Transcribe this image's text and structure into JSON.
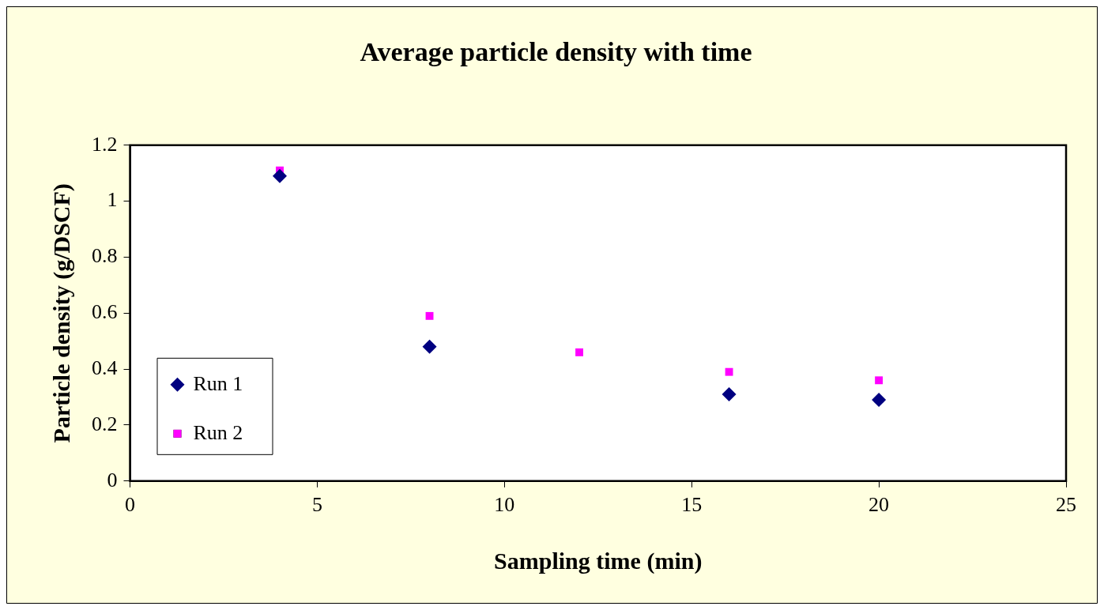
{
  "chart_data": {
    "type": "scatter",
    "title": "Average particle density with time",
    "xlabel": "Sampling time (min)",
    "ylabel": "Particle density (g/DSCF)",
    "xlim": [
      0,
      25
    ],
    "xticks": [
      0,
      5,
      10,
      15,
      20,
      25
    ],
    "ylim": [
      0,
      1.2
    ],
    "yticks": [
      0,
      0.2,
      0.4,
      0.6,
      0.8,
      1,
      1.2
    ],
    "grid": false,
    "legend": "left",
    "series": [
      {
        "name": "Run 1",
        "color": "#000080",
        "marker": "diamond",
        "x": [
          4,
          8,
          16,
          20
        ],
        "values": [
          1.09,
          0.48,
          0.31,
          0.29
        ]
      },
      {
        "name": "Run 2",
        "color": "#ff00ff",
        "marker": "square",
        "x": [
          4,
          8,
          12,
          16,
          20
        ],
        "values": [
          1.11,
          0.59,
          0.46,
          0.39,
          0.36
        ]
      }
    ]
  }
}
